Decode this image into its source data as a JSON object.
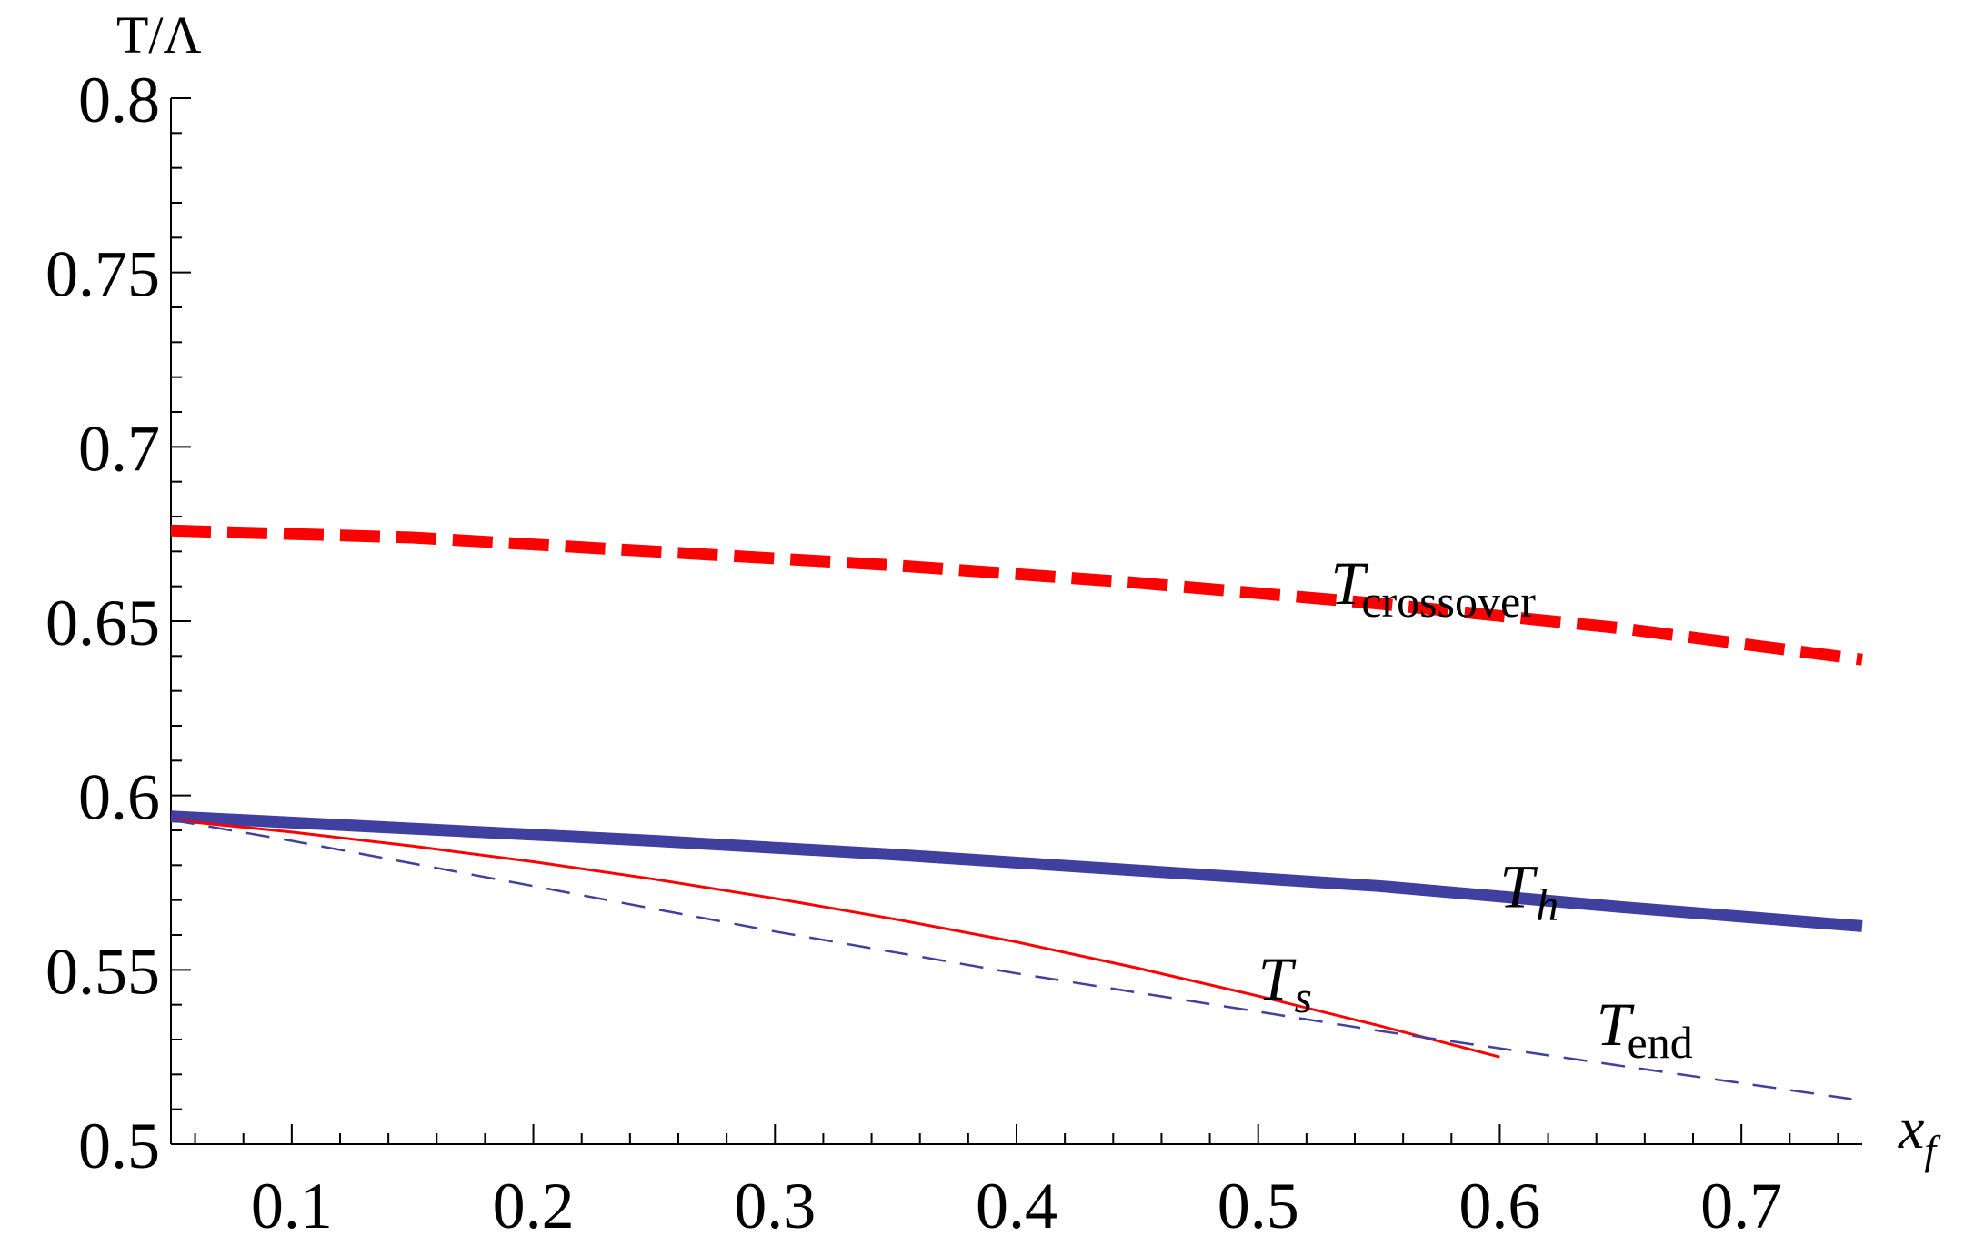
{
  "chart_data": {
    "type": "line",
    "xlabel": "x",
    "xlabel_sub": "f",
    "ylabel": "T/Λ",
    "xlim": [
      0.05,
      0.75
    ],
    "ylim": [
      0.5,
      0.8
    ],
    "x_ticks": [
      0.1,
      0.2,
      0.3,
      0.4,
      0.5,
      0.6,
      0.7
    ],
    "x_tick_labels": [
      "0.1",
      "0.2",
      "0.3",
      "0.4",
      "0.5",
      "0.6",
      "0.7"
    ],
    "y_ticks": [
      0.5,
      0.55,
      0.6,
      0.65,
      0.7,
      0.75,
      0.8
    ],
    "y_tick_labels": [
      "0.5",
      "0.55",
      "0.6",
      "0.65",
      "0.7",
      "0.75",
      "0.8"
    ],
    "grid": false,
    "series": [
      {
        "name": "crossover",
        "label_main": "T",
        "label_sub": "crossover",
        "style": "dashed-thick",
        "color": "#ff0000",
        "x": [
          0.05,
          0.15,
          0.25,
          0.35,
          0.45,
          0.55,
          0.65,
          0.75
        ],
        "y": [
          0.676,
          0.674,
          0.67,
          0.666,
          0.661,
          0.655,
          0.648,
          0.639
        ]
      },
      {
        "name": "h",
        "label_main": "T",
        "label_sub": "h",
        "style": "solid-thick",
        "color": "#4040a0",
        "x": [
          0.05,
          0.15,
          0.25,
          0.35,
          0.45,
          0.55,
          0.65,
          0.75
        ],
        "y": [
          0.594,
          0.5905,
          0.587,
          0.583,
          0.5785,
          0.574,
          0.568,
          0.5625
        ]
      },
      {
        "name": "s",
        "label_main": "T",
        "label_sub": "s",
        "style": "solid-thin",
        "color": "#ff0000",
        "x": [
          0.05,
          0.1,
          0.15,
          0.2,
          0.25,
          0.3,
          0.35,
          0.4,
          0.45,
          0.5,
          0.55,
          0.6
        ],
        "y": [
          0.593,
          0.5895,
          0.5855,
          0.581,
          0.576,
          0.5705,
          0.5645,
          0.558,
          0.5505,
          0.5425,
          0.534,
          0.525
        ]
      },
      {
        "name": "end",
        "label_main": "T",
        "label_sub": "end",
        "style": "dashed-thin",
        "color": "#4040a0",
        "x": [
          0.05,
          0.1,
          0.15,
          0.2,
          0.25,
          0.3,
          0.35,
          0.4,
          0.45,
          0.5,
          0.55,
          0.6,
          0.65,
          0.7,
          0.75
        ],
        "y": [
          0.593,
          0.587,
          0.5805,
          0.574,
          0.5675,
          0.561,
          0.555,
          0.549,
          0.5435,
          0.538,
          0.5325,
          0.5275,
          0.5225,
          0.5175,
          0.5125
        ]
      }
    ],
    "annotations": [
      {
        "series": "crossover",
        "x": 0.53,
        "y": 0.655
      },
      {
        "series": "h",
        "x": 0.6,
        "y": 0.568
      },
      {
        "series": "s",
        "x": 0.5,
        "y": 0.5415
      },
      {
        "series": "end",
        "x": 0.64,
        "y": 0.5285
      }
    ]
  }
}
